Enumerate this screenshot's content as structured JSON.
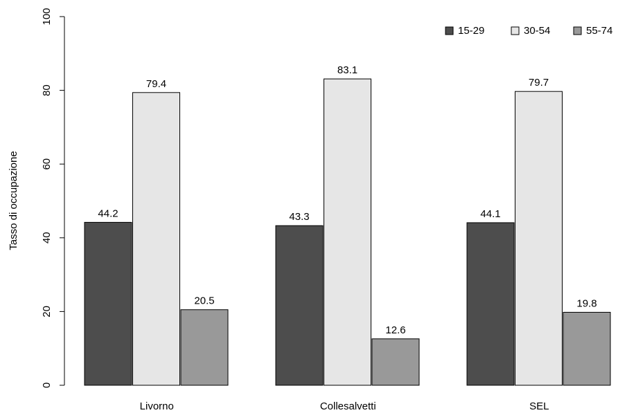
{
  "chart_data": {
    "type": "bar",
    "y_label": "Tasso di occupazione",
    "categories": [
      "Livorno",
      "Collesalvetti",
      "SEL"
    ],
    "series": [
      {
        "name": "15-29",
        "color": "#4d4d4d",
        "values": [
          44.2,
          43.3,
          44.1
        ]
      },
      {
        "name": "30-54",
        "color": "#e6e6e6",
        "values": [
          79.4,
          83.1,
          79.7
        ]
      },
      {
        "name": "55-74",
        "color": "#999999",
        "values": [
          20.5,
          12.6,
          19.8
        ]
      }
    ],
    "ylim": [
      0,
      100
    ],
    "yticks": [
      0,
      20,
      40,
      60,
      80,
      100
    ],
    "legend": "top-right"
  }
}
